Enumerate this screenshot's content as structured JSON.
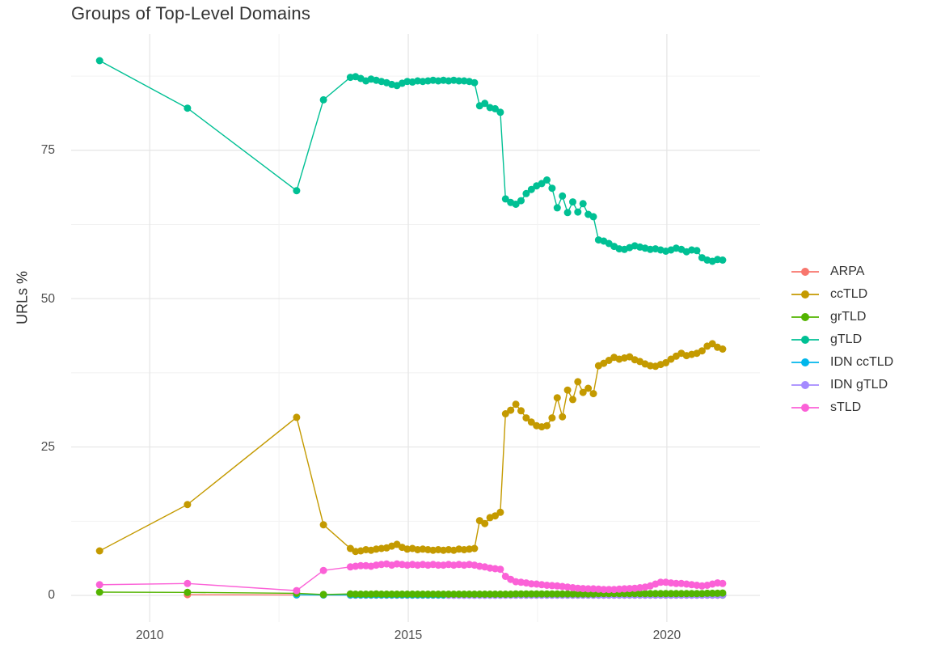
{
  "page_background": "#FFFFFF",
  "chart_data": {
    "type": "line",
    "title": "Groups of Top-Level Domains",
    "xlabel": "",
    "ylabel": "URLs %",
    "x_ticks": [
      2010,
      2015,
      2020
    ],
    "x_minor_ticks": [
      2012.5,
      2017.5
    ],
    "y_ticks": [
      0,
      25,
      50,
      75
    ],
    "y_minor_ticks": [
      12.5,
      37.5,
      62.5,
      87.5
    ],
    "xlim": [
      2008.48,
      2021.8
    ],
    "ylim": [
      -4.5,
      94.6
    ],
    "grid": true,
    "grid_major_color": "#E5E5E5",
    "grid_minor_color": "#F1F1F1",
    "legend_position": "right",
    "x_dense": [
      2013.88,
      2013.98,
      2014.08,
      2014.18,
      2014.28,
      2014.38,
      2014.48,
      2014.58,
      2014.68,
      2014.78,
      2014.88,
      2014.98,
      2015.08,
      2015.18,
      2015.28,
      2015.38,
      2015.48,
      2015.58,
      2015.68,
      2015.78,
      2015.88,
      2015.98,
      2016.08,
      2016.18,
      2016.28,
      2016.38,
      2016.48,
      2016.58,
      2016.68,
      2016.78,
      2016.88,
      2016.98,
      2017.08,
      2017.18,
      2017.28,
      2017.38,
      2017.48,
      2017.58,
      2017.68,
      2017.78,
      2017.88,
      2017.98,
      2018.08,
      2018.18,
      2018.28,
      2018.38,
      2018.48,
      2018.58,
      2018.68,
      2018.78,
      2018.88,
      2018.98,
      2019.08,
      2019.18,
      2019.28,
      2019.38,
      2019.48,
      2019.58,
      2019.68,
      2019.78,
      2019.88,
      2019.98,
      2020.08,
      2020.18,
      2020.28,
      2020.38,
      2020.48,
      2020.58,
      2020.68,
      2020.78,
      2020.88,
      2020.98,
      2021.08
    ],
    "series": [
      {
        "name": "ARPA",
        "color": "#F8766D",
        "x_sparse": [
          2010.73,
          2012.84,
          2013.36
        ],
        "y_sparse": [
          0.12,
          0.08,
          0.06
        ],
        "dense_from": 0,
        "y_dense": [
          0.04,
          0.04,
          0.04,
          0.04,
          0.04,
          0.04,
          0.04,
          0.04,
          0.04,
          0.04,
          0.04,
          0.04,
          0.04,
          0.04,
          0.04,
          0.04,
          0.04,
          0.04,
          0.04,
          0.04,
          0.04,
          0.04,
          0.04,
          0.04,
          0.04,
          0.04,
          0.04,
          0.04,
          0.04,
          0.04,
          0.04,
          0.04,
          0.04,
          0.04,
          0.04,
          0.04,
          0.04,
          0.04,
          0.04,
          0.04,
          0.04,
          0.04,
          0.04,
          0.04,
          0.04,
          0.04,
          0.04,
          0.04,
          0.04,
          0.04,
          0.04,
          0.04,
          0.04,
          0.04,
          0.04,
          0.04,
          0.04,
          0.04,
          0.04,
          0.04,
          0.04,
          0.04,
          0.04,
          0.04,
          0.04,
          0.04,
          0.04,
          0.04,
          0.04,
          0.04,
          0.04,
          0.04,
          0.04
        ]
      },
      {
        "name": "ccTLD",
        "color": "#C49A00",
        "x_sparse": [
          2009.03,
          2010.73,
          2012.84,
          2013.36
        ],
        "y_sparse": [
          7.5,
          15.3,
          30.0,
          11.9
        ],
        "dense_from": 0,
        "y_dense": [
          7.9,
          7.4,
          7.5,
          7.7,
          7.6,
          7.8,
          7.9,
          8.0,
          8.3,
          8.6,
          8.1,
          7.8,
          7.9,
          7.7,
          7.8,
          7.7,
          7.6,
          7.7,
          7.6,
          7.7,
          7.6,
          7.8,
          7.7,
          7.8,
          7.9,
          12.6,
          12.1,
          13.1,
          13.4,
          14.0,
          30.6,
          31.2,
          32.2,
          31.1,
          29.9,
          29.2,
          28.6,
          28.4,
          28.6,
          29.9,
          33.3,
          30.1,
          34.6,
          33.0,
          36.0,
          34.2,
          34.9,
          34.0,
          38.7,
          39.1,
          39.6,
          40.1,
          39.8,
          40.0,
          40.2,
          39.7,
          39.4,
          39.0,
          38.7,
          38.6,
          38.9,
          39.2,
          39.8,
          40.3,
          40.8,
          40.4,
          40.6,
          40.8,
          41.2,
          42.0,
          42.4,
          41.8,
          41.5
        ]
      },
      {
        "name": "grTLD",
        "color": "#53B400",
        "x_sparse": [
          2009.03,
          2010.73,
          2012.84,
          2013.36
        ],
        "y_sparse": [
          0.55,
          0.5,
          0.35,
          0.15
        ],
        "dense_from": 0,
        "y_dense": [
          0.25,
          0.2,
          0.2,
          0.2,
          0.2,
          0.25,
          0.2,
          0.2,
          0.2,
          0.2,
          0.2,
          0.2,
          0.2,
          0.2,
          0.2,
          0.2,
          0.2,
          0.2,
          0.2,
          0.2,
          0.2,
          0.2,
          0.2,
          0.2,
          0.2,
          0.2,
          0.2,
          0.2,
          0.2,
          0.2,
          0.2,
          0.2,
          0.25,
          0.25,
          0.25,
          0.25,
          0.25,
          0.25,
          0.25,
          0.25,
          0.25,
          0.25,
          0.25,
          0.25,
          0.25,
          0.25,
          0.25,
          0.25,
          0.3,
          0.3,
          0.3,
          0.3,
          0.3,
          0.3,
          0.3,
          0.3,
          0.3,
          0.3,
          0.3,
          0.3,
          0.3,
          0.3,
          0.3,
          0.3,
          0.3,
          0.3,
          0.3,
          0.3,
          0.3,
          0.35,
          0.35,
          0.35,
          0.4
        ]
      },
      {
        "name": "gTLD",
        "color": "#00C094",
        "x_sparse": [
          2009.03,
          2010.73,
          2012.84,
          2013.36
        ],
        "y_sparse": [
          90.1,
          82.1,
          68.2,
          83.5
        ],
        "dense_from": 0,
        "y_dense": [
          87.3,
          87.4,
          87.1,
          86.7,
          87.0,
          86.8,
          86.6,
          86.4,
          86.1,
          85.9,
          86.3,
          86.6,
          86.5,
          86.7,
          86.6,
          86.7,
          86.8,
          86.7,
          86.8,
          86.7,
          86.8,
          86.7,
          86.7,
          86.6,
          86.4,
          82.5,
          82.9,
          82.2,
          82.0,
          81.4,
          66.8,
          66.2,
          65.9,
          66.5,
          67.7,
          68.4,
          69.0,
          69.4,
          70.0,
          68.6,
          65.3,
          67.3,
          64.5,
          66.3,
          64.6,
          66.0,
          64.2,
          63.8,
          59.9,
          59.7,
          59.3,
          58.8,
          58.4,
          58.3,
          58.6,
          58.9,
          58.7,
          58.5,
          58.3,
          58.4,
          58.2,
          58.0,
          58.2,
          58.5,
          58.3,
          57.9,
          58.2,
          58.1,
          56.9,
          56.5,
          56.3,
          56.6,
          56.5
        ]
      },
      {
        "name": "IDN ccTLD",
        "color": "#00B6EB",
        "x_sparse": [
          2012.84,
          2013.36
        ],
        "y_sparse": [
          0.1,
          0.07
        ],
        "dense_from": 0,
        "y_dense": [
          0.06,
          0.06,
          0.06,
          0.06,
          0.06,
          0.06,
          0.06,
          0.06,
          0.06,
          0.06,
          0.06,
          0.06,
          0.06,
          0.06,
          0.06,
          0.06,
          0.06,
          0.06,
          0.06,
          0.06,
          0.06,
          0.06,
          0.06,
          0.06,
          0.06,
          0.06,
          0.06,
          0.06,
          0.06,
          0.06,
          0.06,
          0.06,
          0.06,
          0.06,
          0.06,
          0.06,
          0.06,
          0.06,
          0.06,
          0.06,
          0.06,
          0.06,
          0.06,
          0.06,
          0.06,
          0.06,
          0.06,
          0.06,
          0.06,
          0.06,
          0.06,
          0.06,
          0.06,
          0.06,
          0.06,
          0.06,
          0.06,
          0.06,
          0.06,
          0.06,
          0.06,
          0.06,
          0.06,
          0.06,
          0.06,
          0.06,
          0.06,
          0.06,
          0.06,
          0.06,
          0.06,
          0.06,
          0.06
        ]
      },
      {
        "name": "IDN gTLD",
        "color": "#A58AFF",
        "x_sparse": [],
        "y_sparse": [],
        "dense_from": 19,
        "y_dense": [
          0.02,
          0.02,
          0.02,
          0.02,
          0.02,
          0.02,
          0.02,
          0.02,
          0.02,
          0.02,
          0.02,
          0.05,
          0.05,
          0.05,
          0.05,
          0.05,
          0.05,
          0.05,
          0.05,
          0.05,
          0.05,
          0.05,
          0.05,
          0.05,
          0.05,
          0.05,
          0.05,
          0.05,
          0.05,
          0.05,
          0.05,
          0.05,
          0.05,
          0.05,
          0.05,
          0.05,
          0.05,
          0.05,
          0.05,
          0.05,
          0.05,
          0.05,
          0.05,
          0.05,
          0.05,
          0.05,
          0.05,
          0.05,
          0.05,
          0.05,
          0.05,
          0.05,
          0.05,
          0.1
        ]
      },
      {
        "name": "sTLD",
        "color": "#FB61D7",
        "x_sparse": [
          2009.03,
          2010.73,
          2012.84,
          2013.36
        ],
        "y_sparse": [
          1.8,
          2.0,
          0.8,
          4.2
        ],
        "dense_from": 0,
        "y_dense": [
          4.8,
          4.9,
          5.0,
          5.0,
          4.9,
          5.1,
          5.2,
          5.3,
          5.1,
          5.3,
          5.2,
          5.1,
          5.2,
          5.1,
          5.2,
          5.1,
          5.2,
          5.1,
          5.1,
          5.2,
          5.1,
          5.2,
          5.1,
          5.2,
          5.1,
          4.9,
          4.8,
          4.6,
          4.5,
          4.4,
          3.2,
          2.7,
          2.3,
          2.2,
          2.1,
          1.95,
          1.9,
          1.8,
          1.7,
          1.65,
          1.6,
          1.5,
          1.4,
          1.3,
          1.2,
          1.15,
          1.1,
          1.1,
          1.05,
          1.0,
          1.0,
          1.0,
          1.05,
          1.1,
          1.15,
          1.2,
          1.3,
          1.4,
          1.6,
          1.9,
          2.2,
          2.2,
          2.1,
          2.0,
          2.0,
          1.9,
          1.8,
          1.7,
          1.6,
          1.7,
          1.9,
          2.1,
          2.0
        ]
      }
    ]
  }
}
